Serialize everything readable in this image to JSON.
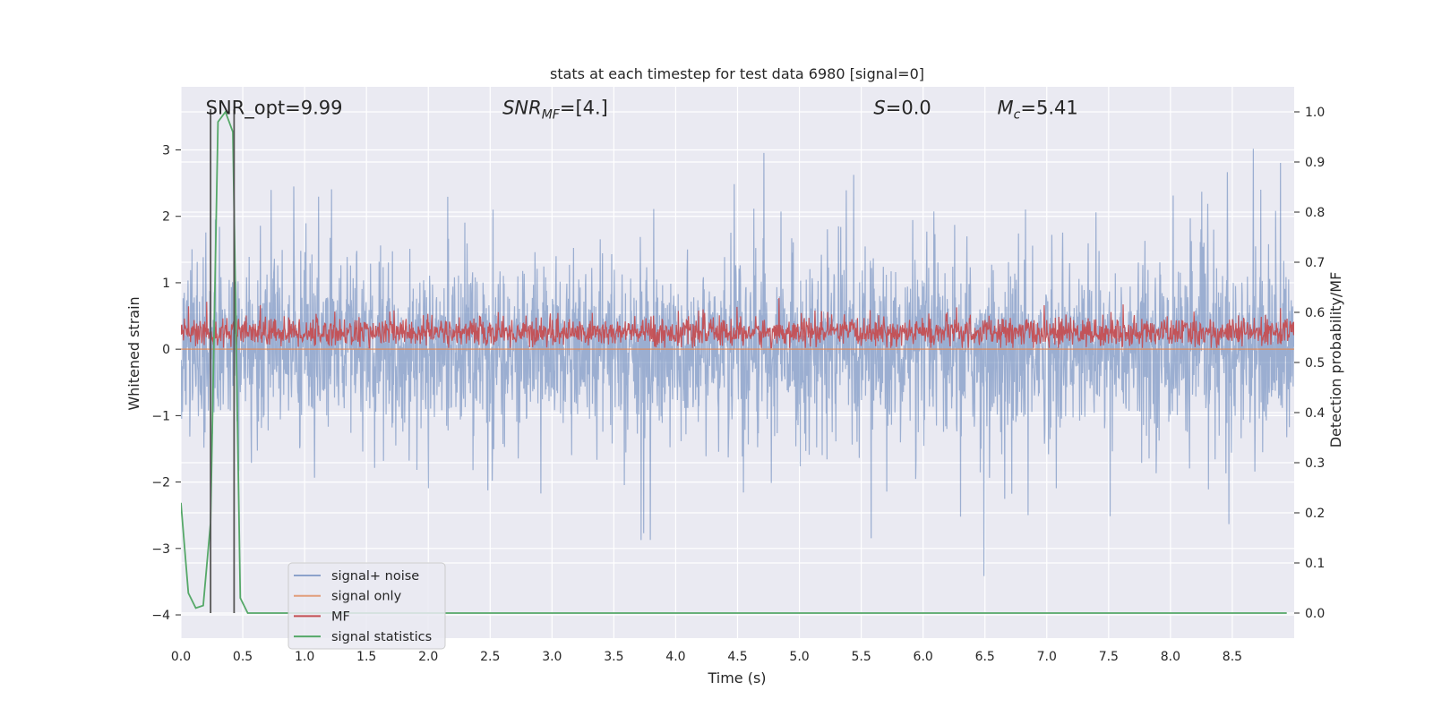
{
  "chart_data": {
    "type": "line",
    "title": "stats at each timestep for test data 6980 [signal=0]",
    "xlabel": "Time (s)",
    "ylabel": "Whitened strain",
    "y2label": "Detection probability/MF",
    "xlim": [
      0.0,
      9.0
    ],
    "ylim": [
      -4.35,
      3.95
    ],
    "y2lim": [
      -0.05,
      1.05
    ],
    "xticks": [
      0.0,
      0.5,
      1.0,
      1.5,
      2.0,
      2.5,
      3.0,
      3.5,
      4.0,
      4.5,
      5.0,
      5.5,
      6.0,
      6.5,
      7.0,
      7.5,
      8.0,
      8.5
    ],
    "xtick_labels": [
      "0.0",
      "0.5",
      "1.0",
      "1.5",
      "2.0",
      "2.5",
      "3.0",
      "3.5",
      "4.0",
      "4.5",
      "5.0",
      "5.5",
      "6.0",
      "6.5",
      "7.0",
      "7.5",
      "8.0",
      "8.5"
    ],
    "yticks": [
      -4,
      -3,
      -2,
      -1,
      0,
      1,
      2,
      3
    ],
    "ytick_labels": [
      "−4",
      "−3",
      "−2",
      "−1",
      "0",
      "1",
      "2",
      "3"
    ],
    "y2ticks": [
      0.0,
      0.1,
      0.2,
      0.3,
      0.4,
      0.5,
      0.6,
      0.7,
      0.8,
      0.9,
      1.0
    ],
    "y2tick_labels": [
      "0.0",
      "0.1",
      "0.2",
      "0.3",
      "0.4",
      "0.5",
      "0.6",
      "0.7",
      "0.8",
      "0.9",
      "1.0"
    ],
    "grid": true,
    "legend_position": "lower-left",
    "annotations": [
      {
        "main": "SNR_opt=9.99",
        "x": 0.2,
        "y": 3.65
      },
      {
        "main": "SNR",
        "sub": "MF",
        "rest": "=[4.]",
        "italic": true,
        "x": 2.6,
        "y": 3.65
      },
      {
        "main": "S",
        "rest": "=0.0",
        "italic": true,
        "x": 5.6,
        "y": 3.65
      },
      {
        "main": "M",
        "sub": "c",
        "rest": "=5.41",
        "italic": true,
        "x": 6.6,
        "y": 3.65
      }
    ],
    "vlines": [
      0.24,
      0.43
    ],
    "series": [
      {
        "name": "signal+ noise",
        "color": "#4c72b0",
        "axis": "left",
        "kind": "noise",
        "description_values": {
          "mean": 0.0,
          "envelope_upper_typical": 1.7,
          "envelope_lower_typical": -1.8,
          "peak_max": 3.6,
          "peak_min": -4.0
        }
      },
      {
        "name": "signal only",
        "color": "#dd8452",
        "axis": "left",
        "kind": "flat",
        "value": 0.0
      },
      {
        "name": "MF",
        "color": "#c44e52",
        "axis": "left",
        "kind": "noise-positive",
        "description_values": {
          "mean": 0.25,
          "min_typical": 0.0,
          "max_typical": 0.6,
          "peak_max": 1.0
        }
      },
      {
        "name": "signal statistics",
        "color": "#55a868",
        "axis": "right",
        "kind": "line",
        "x": [
          0.0,
          0.06,
          0.12,
          0.18,
          0.24,
          0.3,
          0.36,
          0.42,
          0.48,
          0.54,
          0.6,
          1.0,
          2.0,
          3.0,
          4.0,
          5.0,
          6.0,
          7.0,
          8.0,
          8.94
        ],
        "values": [
          0.22,
          0.04,
          0.01,
          0.015,
          0.18,
          0.98,
          1.0,
          0.96,
          0.03,
          0.0,
          0.0,
          0.0,
          0.0,
          0.0,
          0.0,
          0.0,
          0.0,
          0.0,
          0.0,
          0.0
        ]
      }
    ]
  }
}
